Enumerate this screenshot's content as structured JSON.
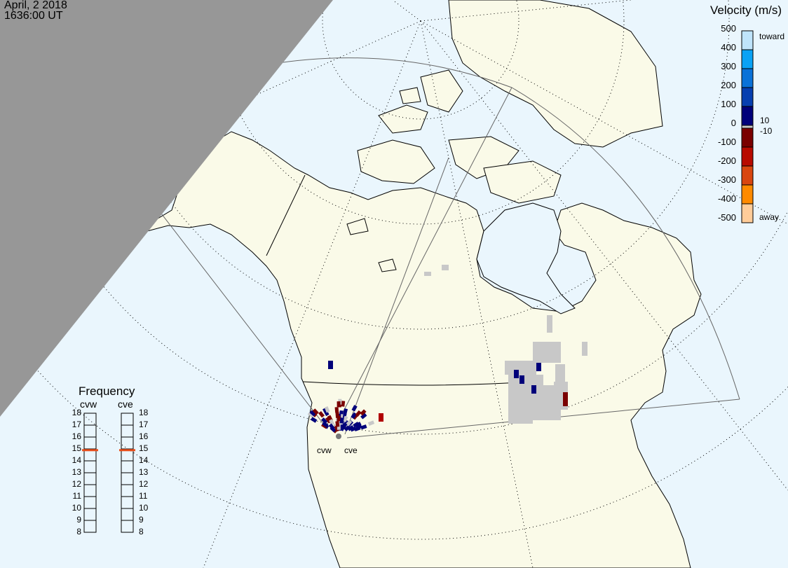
{
  "header": {
    "date": "April, 2 2018",
    "time": "1636:00 UT"
  },
  "velocity_scale": {
    "title": "Velocity (m/s)",
    "ticks": [
      "500",
      "400",
      "300",
      "200",
      "100",
      "0",
      "-100",
      "-200",
      "-300",
      "-400",
      "-500"
    ],
    "toward_label": "toward",
    "away_label": "away",
    "threshold_pos": "10",
    "threshold_neg": "-10",
    "colors": [
      "#bfe4fb",
      "#0aa2f5",
      "#0a72d8",
      "#063fb0",
      "#00007a",
      "#c8c8c8",
      "#7a0000",
      "#b80a00",
      "#d94610",
      "#ff8a00",
      "#ffcc99"
    ]
  },
  "frequency": {
    "title": "Frequency",
    "radars": [
      {
        "name": "cvw",
        "value_mhz": 14.9
      },
      {
        "name": "cve",
        "value_mhz": 14.9
      }
    ],
    "ticks": [
      "18",
      "17",
      "16",
      "15",
      "14",
      "13",
      "12",
      "11",
      "10",
      "9",
      "8"
    ],
    "marker_color": "#e8501e"
  },
  "radar_sites": [
    {
      "label": "cvw"
    },
    {
      "label": "cve"
    }
  ],
  "map": {
    "land": "#fafae8",
    "ocean": "#eaf6fd",
    "night": "#979797",
    "ground_scatter": "#c8c8c8"
  }
}
